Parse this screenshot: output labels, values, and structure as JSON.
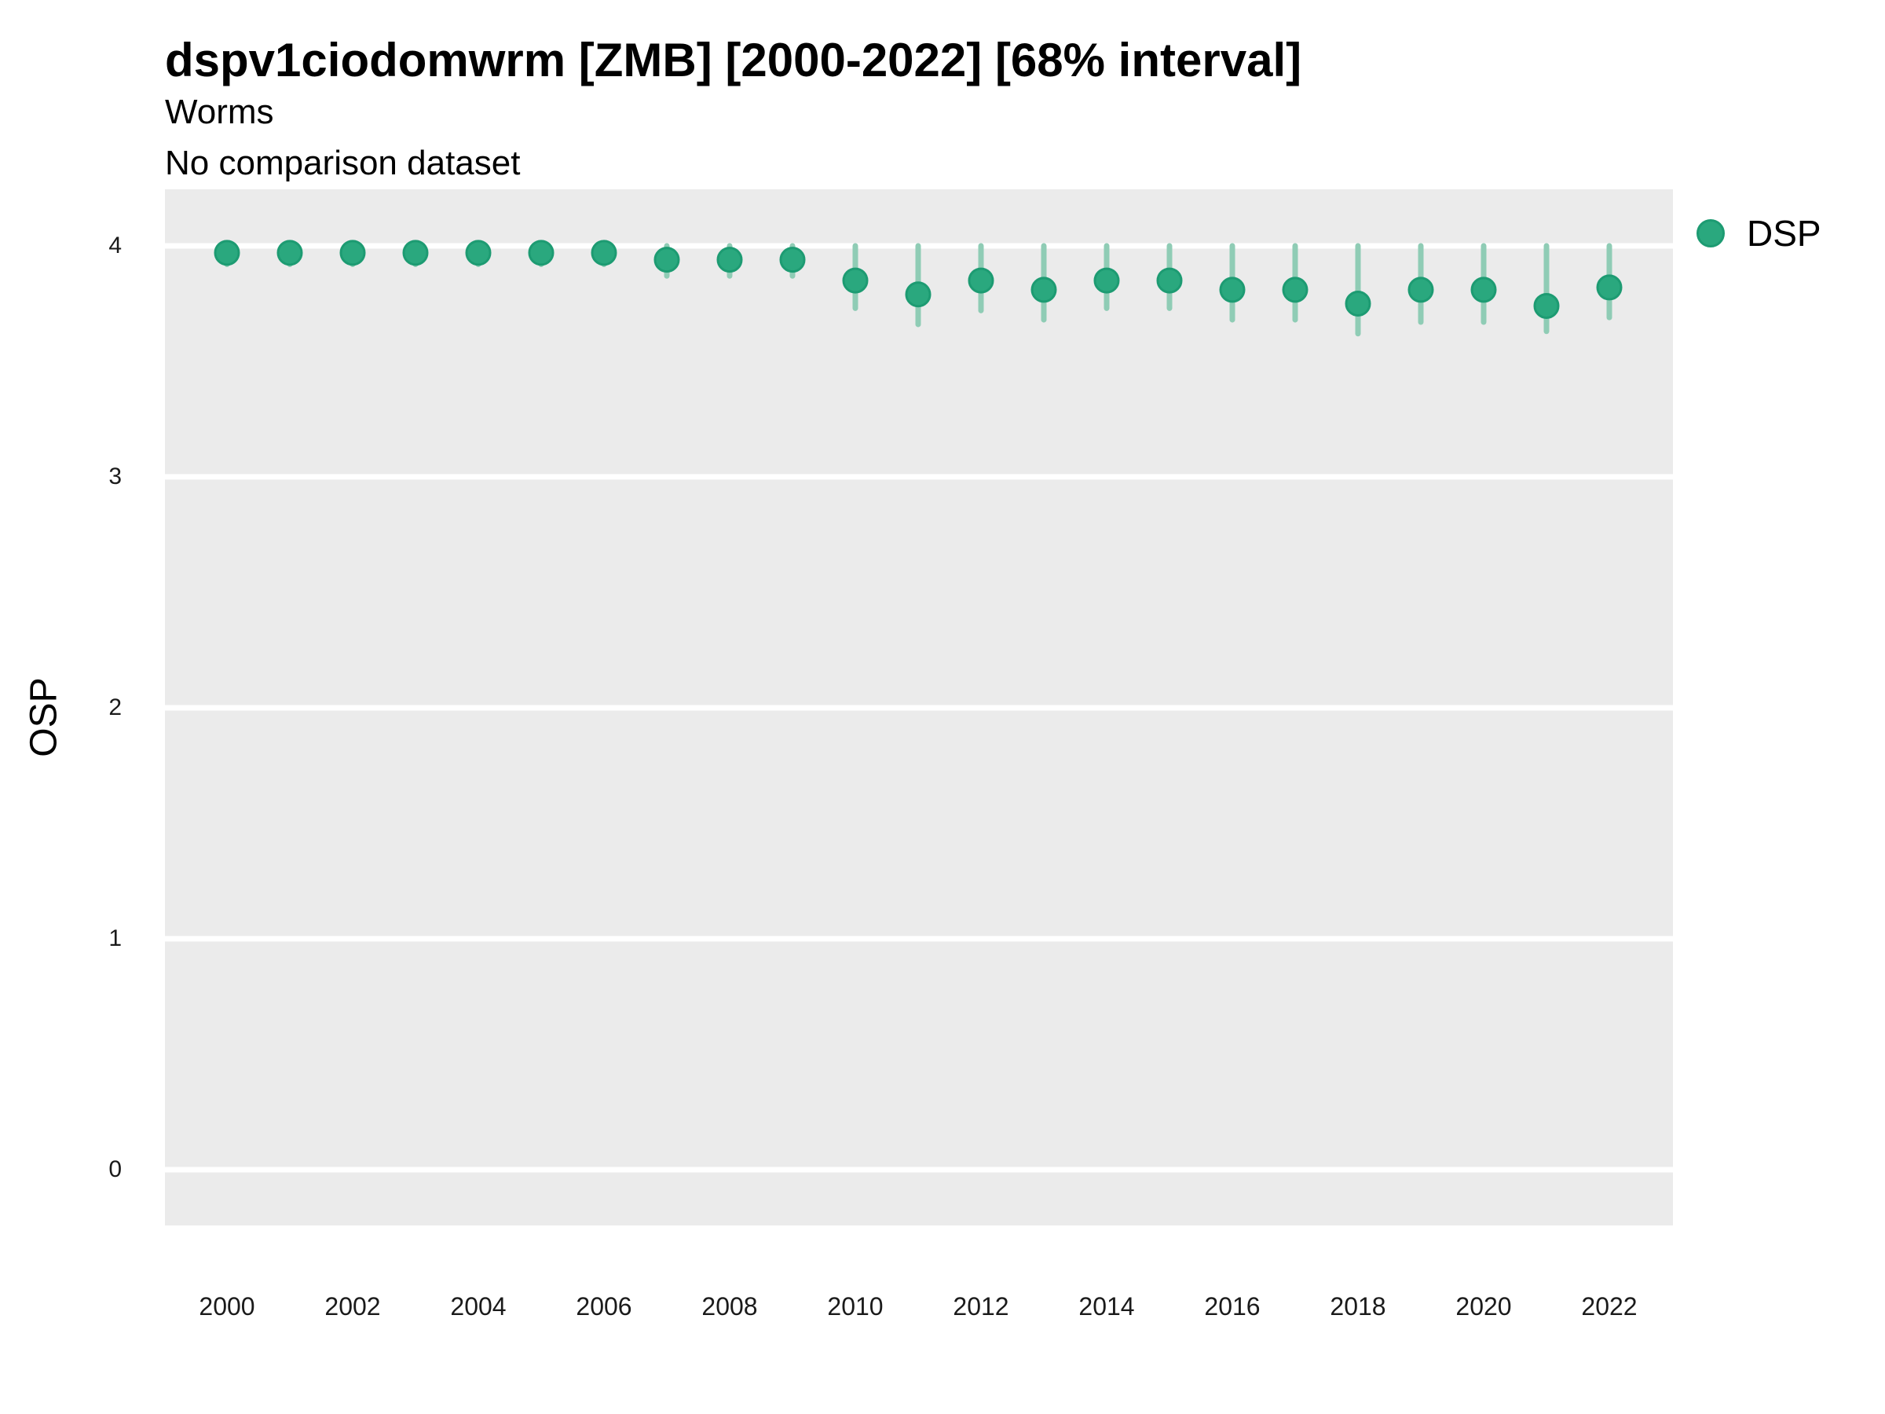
{
  "header": {
    "title": "dspv1ciodomwrm [ZMB] [2000-2022] [68% interval]",
    "subtitle1": "Worms",
    "subtitle2": "No comparison dataset"
  },
  "legend": {
    "items": [
      {
        "label": "DSP",
        "color": "#2aa87e"
      }
    ]
  },
  "chart_data": {
    "type": "scatter",
    "title": "dspv1ciodomwrm [ZMB] [2000-2022] [68% interval]",
    "subtitle": [
      "Worms",
      "No comparison dataset"
    ],
    "xlabel": "",
    "ylabel": "OSP",
    "interval_level": "68%",
    "legend_position": "right",
    "grid": "horizontal white gridlines on gray panel",
    "x": [
      2000,
      2001,
      2002,
      2003,
      2004,
      2005,
      2006,
      2007,
      2008,
      2009,
      2010,
      2011,
      2012,
      2013,
      2014,
      2015,
      2016,
      2017,
      2018,
      2019,
      2020,
      2021,
      2022
    ],
    "series": [
      {
        "name": "DSP",
        "values": [
          3.97,
          3.97,
          3.97,
          3.97,
          3.97,
          3.97,
          3.97,
          3.94,
          3.94,
          3.94,
          3.85,
          3.79,
          3.85,
          3.81,
          3.85,
          3.85,
          3.81,
          3.81,
          3.75,
          3.81,
          3.81,
          3.74,
          3.82
        ],
        "interval_low": [
          3.92,
          3.92,
          3.92,
          3.92,
          3.92,
          3.92,
          3.92,
          3.87,
          3.87,
          3.87,
          3.73,
          3.66,
          3.72,
          3.68,
          3.73,
          3.73,
          3.68,
          3.68,
          3.62,
          3.67,
          3.67,
          3.63,
          3.69
        ],
        "interval_high": [
          4.0,
          4.0,
          4.0,
          4.0,
          4.0,
          4.0,
          4.0,
          4.0,
          4.0,
          4.0,
          4.0,
          4.0,
          4.0,
          4.0,
          4.0,
          4.0,
          4.0,
          4.0,
          4.0,
          4.0,
          4.0,
          4.0,
          4.0
        ]
      }
    ],
    "xticks": [
      2000,
      2002,
      2004,
      2006,
      2008,
      2010,
      2012,
      2014,
      2016,
      2018,
      2020,
      2022
    ],
    "yticks": [
      0,
      1,
      2,
      3,
      4
    ],
    "ylim": [
      -0.25,
      4.25
    ],
    "xlim": [
      1999,
      2023
    ],
    "colors": {
      "point": "#2aa87e",
      "point_outline": "#1d9b72",
      "interval_bar": "#8fccb5",
      "panel_bg": "#ebebeb",
      "gridline": "#ffffff",
      "text": "#000000"
    }
  }
}
